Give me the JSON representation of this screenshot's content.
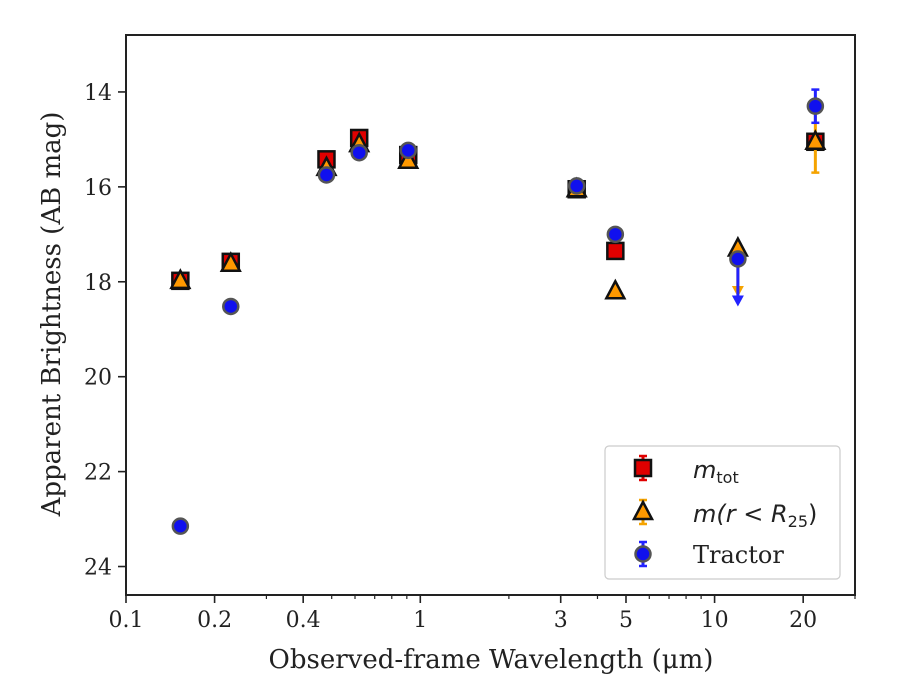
{
  "chart_data": {
    "type": "scatter",
    "xlabel": "Observed-frame Wavelength (μm)",
    "ylabel": "Apparent Brightness (AB mag)",
    "xscale": "log",
    "xlim": [
      0.1,
      30
    ],
    "ylim": [
      24.6,
      12.8
    ],
    "y_inverted": true,
    "x_ticks": [
      {
        "value": 0.1,
        "label": "0.1"
      },
      {
        "value": 0.2,
        "label": "0.2"
      },
      {
        "value": 0.4,
        "label": "0.4"
      },
      {
        "value": 1,
        "label": "1"
      },
      {
        "value": 3,
        "label": "3"
      },
      {
        "value": 5,
        "label": "5"
      },
      {
        "value": 10,
        "label": "10"
      },
      {
        "value": 20,
        "label": "20"
      }
    ],
    "y_ticks": [
      {
        "value": 14,
        "label": "14"
      },
      {
        "value": 16,
        "label": "16"
      },
      {
        "value": 18,
        "label": "18"
      },
      {
        "value": 20,
        "label": "20"
      },
      {
        "value": 22,
        "label": "22"
      },
      {
        "value": 24,
        "label": "24"
      }
    ],
    "grid": false,
    "legend_position": "bottom-right",
    "series": [
      {
        "name": "m_tot",
        "legend_main": "m",
        "legend_sub": "tot",
        "marker": "square",
        "color": "#e00000",
        "errcolor": "#e00000",
        "points": [
          {
            "x": 0.153,
            "y": 17.98,
            "err": 0.05
          },
          {
            "x": 0.227,
            "y": 17.58,
            "err": 0.05
          },
          {
            "x": 0.48,
            "y": 15.42,
            "err": 0.05
          },
          {
            "x": 0.62,
            "y": 14.97,
            "err": 0.05
          },
          {
            "x": 0.91,
            "y": 15.33,
            "err": 0.08
          },
          {
            "x": 3.4,
            "y": 16.05,
            "err": 0.05
          },
          {
            "x": 4.6,
            "y": 17.35,
            "err": 0.05
          },
          {
            "x": 22,
            "y": 15.05,
            "err": 0.08
          }
        ]
      },
      {
        "name": "m(r < R25)",
        "legend_main": "m(r < R",
        "legend_sub": "25",
        "legend_tail": ")",
        "marker": "triangle",
        "color": "#ff9900",
        "errcolor": "#f5a300",
        "points": [
          {
            "x": 0.153,
            "y": 17.98,
            "err": 0.05
          },
          {
            "x": 0.227,
            "y": 17.62,
            "err": 0.05
          },
          {
            "x": 0.48,
            "y": 15.6,
            "err": 0.05
          },
          {
            "x": 0.62,
            "y": 15.1,
            "err": 0.05
          },
          {
            "x": 0.91,
            "y": 15.45,
            "err": 0.05
          },
          {
            "x": 3.4,
            "y": 16.05,
            "err": 0.05
          },
          {
            "x": 4.6,
            "y": 18.2,
            "err": 0.05
          },
          {
            "x": 12,
            "y": 17.3,
            "err": 0,
            "upper_limit": true,
            "arrow_to": 18.3
          },
          {
            "x": 22,
            "y": 15.05,
            "err": 0.65
          }
        ]
      },
      {
        "name": "Tractor",
        "marker": "circle",
        "color": "#1010ee",
        "errcolor": "#2222ff",
        "points": [
          {
            "x": 0.153,
            "y": 23.15,
            "err": 0.05
          },
          {
            "x": 0.227,
            "y": 18.52,
            "err": 0.05
          },
          {
            "x": 0.48,
            "y": 15.75,
            "err": 0.05
          },
          {
            "x": 0.62,
            "y": 15.28,
            "err": 0.05
          },
          {
            "x": 0.91,
            "y": 15.23,
            "err": 0.05
          },
          {
            "x": 3.4,
            "y": 15.98,
            "err": 0.05
          },
          {
            "x": 4.6,
            "y": 17.0,
            "err": 0.05
          },
          {
            "x": 12,
            "y": 17.52,
            "err": 0,
            "upper_limit": true,
            "arrow_to": 18.5
          },
          {
            "x": 22,
            "y": 14.3,
            "err": 0.35
          }
        ]
      }
    ]
  }
}
